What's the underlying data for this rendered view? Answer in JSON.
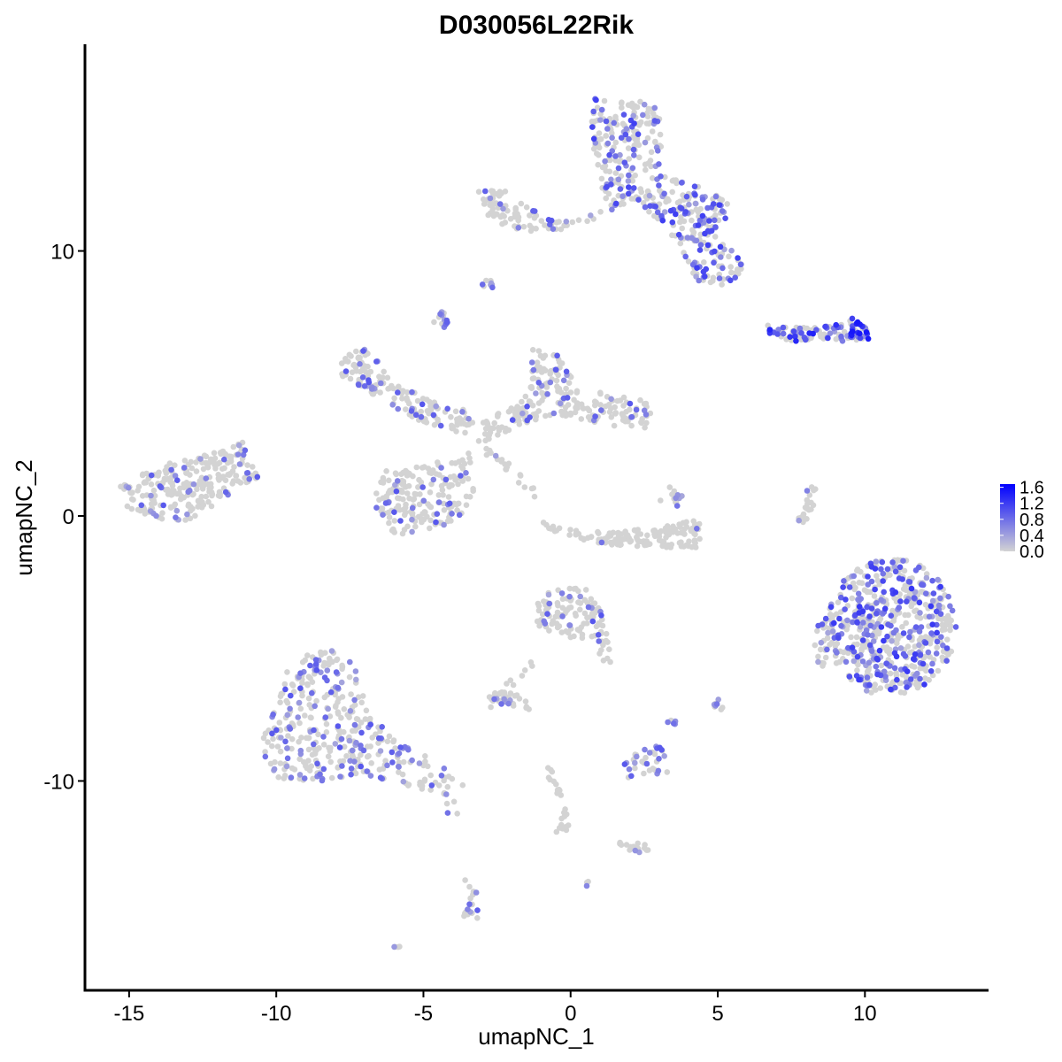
{
  "chart_data": {
    "type": "scatter",
    "title": "D030056L22Rik",
    "xlabel": "umapNC_1",
    "ylabel": "umapNC_2",
    "xlim": [
      -16.5,
      14.2
    ],
    "ylim": [
      -17.9,
      17.8
    ],
    "x_ticks": [
      -15,
      -10,
      -5,
      0,
      5,
      10
    ],
    "x_tick_labels": [
      "-15",
      "-10",
      "-5",
      "0",
      "5",
      "10"
    ],
    "y_ticks": [
      -10,
      0,
      10
    ],
    "y_tick_labels": [
      "-10",
      "0",
      "10"
    ],
    "grid": false,
    "legend": {
      "placement": "right",
      "type": "colorbar",
      "min": 0.0,
      "max": 1.68,
      "ticks": [
        0.0,
        0.4,
        0.8,
        1.2,
        1.6
      ],
      "tick_labels": [
        "0.0",
        "0.4",
        "0.8",
        "1.2",
        "1.6"
      ],
      "low_color": "#d3d3d3",
      "high_color": "#0000ff"
    },
    "point_color_low": "#d3d3d3",
    "point_color_high": "#0000ff",
    "clusters": [
      {
        "name": "top-right-upper",
        "shape": "poly",
        "poly": [
          [
            0.6,
            15.8
          ],
          [
            2.9,
            15.6
          ],
          [
            3.2,
            14.0
          ],
          [
            2.9,
            12.9
          ],
          [
            4.7,
            12.3
          ],
          [
            5.6,
            11.6
          ],
          [
            4.8,
            10.7
          ],
          [
            5.6,
            10.0
          ],
          [
            6.0,
            9.4
          ],
          [
            5.2,
            8.6
          ],
          [
            4.3,
            8.9
          ],
          [
            3.5,
            10.5
          ],
          [
            2.8,
            11.3
          ],
          [
            2.0,
            11.9
          ],
          [
            1.3,
            11.5
          ],
          [
            0.9,
            13.0
          ],
          [
            0.7,
            14.5
          ]
        ],
        "n": 420,
        "expr_frac": 0.38,
        "expr_max": 1.2
      },
      {
        "name": "top-mid-arm",
        "shape": "poly",
        "poly": [
          [
            -3.2,
            12.3
          ],
          [
            -2.2,
            12.3
          ],
          [
            -0.8,
            11.2
          ],
          [
            0.8,
            11.1
          ],
          [
            2.0,
            11.9
          ],
          [
            1.0,
            11.6
          ],
          [
            -0.5,
            10.7
          ],
          [
            -2.3,
            10.8
          ],
          [
            -3.1,
            11.4
          ]
        ],
        "n": 90,
        "expr_frac": 0.2,
        "expr_max": 1.0
      },
      {
        "name": "small-top-dot",
        "shape": "ellipse",
        "cx": -2.8,
        "cy": 8.7,
        "rx": 0.25,
        "ry": 0.2,
        "n": 8,
        "expr_frac": 0.2,
        "expr_max": 0.9
      },
      {
        "name": "small-blob-a",
        "shape": "ellipse",
        "cx": -4.4,
        "cy": 7.4,
        "rx": 0.25,
        "ry": 0.35,
        "n": 14,
        "expr_frac": 0.6,
        "expr_max": 1.0
      },
      {
        "name": "right-streak",
        "shape": "poly",
        "poly": [
          [
            6.6,
            7.2
          ],
          [
            8.5,
            7.1
          ],
          [
            9.6,
            7.5
          ],
          [
            10.2,
            7.0
          ],
          [
            10.1,
            6.6
          ],
          [
            9.0,
            6.6
          ],
          [
            7.5,
            6.6
          ],
          [
            6.8,
            6.8
          ]
        ],
        "n": 110,
        "expr_frac": 0.55,
        "expr_max": 1.5
      },
      {
        "name": "center-left-arm",
        "shape": "poly",
        "poly": [
          [
            -7.8,
            6.1
          ],
          [
            -6.9,
            6.3
          ],
          [
            -5.9,
            5.1
          ],
          [
            -4.6,
            4.3
          ],
          [
            -3.6,
            4.0
          ],
          [
            -3.2,
            3.4
          ],
          [
            -3.8,
            3.0
          ],
          [
            -5.0,
            3.5
          ],
          [
            -6.3,
            4.3
          ],
          [
            -7.8,
            5.2
          ]
        ],
        "n": 160,
        "expr_frac": 0.14,
        "expr_max": 1.0
      },
      {
        "name": "center-up-arm",
        "shape": "poly",
        "poly": [
          [
            -1.3,
            6.3
          ],
          [
            -0.4,
            6.1
          ],
          [
            0.3,
            4.8
          ],
          [
            1.8,
            4.5
          ],
          [
            2.7,
            4.4
          ],
          [
            2.8,
            3.3
          ],
          [
            1.5,
            3.4
          ],
          [
            -0.4,
            3.8
          ],
          [
            -1.8,
            3.4
          ],
          [
            -3.2,
            2.6
          ],
          [
            -3.0,
            3.5
          ],
          [
            -1.4,
            4.6
          ]
        ],
        "n": 230,
        "expr_frac": 0.14,
        "expr_max": 1.0
      },
      {
        "name": "center-lower",
        "shape": "poly",
        "poly": [
          [
            -6.2,
            1.8
          ],
          [
            -4.6,
            2.0
          ],
          [
            -3.4,
            2.5
          ],
          [
            -3.2,
            1.2
          ],
          [
            -3.6,
            0.0
          ],
          [
            -4.8,
            -0.6
          ],
          [
            -6.0,
            -0.7
          ],
          [
            -6.7,
            0.3
          ],
          [
            -6.6,
            1.2
          ]
        ],
        "n": 200,
        "expr_frac": 0.12,
        "expr_max": 1.0
      },
      {
        "name": "center-streak",
        "shape": "poly",
        "poly": [
          [
            -3.2,
            2.6
          ],
          [
            -1.1,
            0.6
          ],
          [
            -0.8,
            0.7
          ],
          [
            -2.9,
            2.8
          ]
        ],
        "n": 20,
        "expr_frac": 0.2,
        "expr_max": 0.8
      },
      {
        "name": "left-blob",
        "shape": "poly",
        "poly": [
          [
            -15.3,
            1.1
          ],
          [
            -14.1,
            1.9
          ],
          [
            -12.8,
            2.2
          ],
          [
            -11.8,
            2.5
          ],
          [
            -11.2,
            2.9
          ],
          [
            -10.6,
            1.4
          ],
          [
            -11.9,
            0.6
          ],
          [
            -12.6,
            -0.2
          ],
          [
            -13.7,
            -0.2
          ],
          [
            -15.2,
            0.3
          ]
        ],
        "n": 260,
        "expr_frac": 0.12,
        "expr_max": 1.0
      },
      {
        "name": "arc-cluster",
        "shape": "poly",
        "poly": [
          [
            -1.0,
            -0.2
          ],
          [
            0.2,
            -0.5
          ],
          [
            1.6,
            -0.6
          ],
          [
            3.2,
            -0.4
          ],
          [
            4.4,
            -0.1
          ],
          [
            4.4,
            -1.2
          ],
          [
            3.2,
            -1.2
          ],
          [
            1.5,
            -1.1
          ],
          [
            0.1,
            -0.9
          ],
          [
            -0.8,
            -0.5
          ]
        ],
        "n": 140,
        "expr_frac": 0.03,
        "expr_max": 0.8
      },
      {
        "name": "arc-top",
        "shape": "ellipse",
        "cx": 3.4,
        "cy": 0.7,
        "rx": 0.4,
        "ry": 0.4,
        "n": 14,
        "expr_frac": 0.3,
        "expr_max": 0.8
      },
      {
        "name": "right-thin",
        "shape": "poly",
        "poly": [
          [
            8.0,
            1.0
          ],
          [
            8.4,
            1.2
          ],
          [
            8.3,
            0.4
          ],
          [
            7.9,
            -0.6
          ],
          [
            7.5,
            -0.5
          ],
          [
            7.9,
            0.3
          ]
        ],
        "n": 22,
        "expr_frac": 0.2,
        "expr_max": 0.8
      },
      {
        "name": "right-big-blob",
        "shape": "ellipse",
        "cx": 10.9,
        "cy": -4.2,
        "rx": 2.2,
        "ry": 2.6,
        "n": 560,
        "expr_frac": 0.4,
        "expr_max": 1.25
      },
      {
        "name": "right-big-left",
        "shape": "ellipse",
        "cx": 8.7,
        "cy": -4.8,
        "rx": 0.45,
        "ry": 1.0,
        "n": 30,
        "expr_frac": 0.25,
        "expr_max": 1.0
      },
      {
        "name": "center-down",
        "shape": "poly",
        "poly": [
          [
            -1.1,
            -2.8
          ],
          [
            0.5,
            -2.7
          ],
          [
            1.1,
            -3.6
          ],
          [
            1.2,
            -4.8
          ],
          [
            0.0,
            -4.6
          ],
          [
            -1.2,
            -4.2
          ]
        ],
        "n": 110,
        "expr_frac": 0.15,
        "expr_max": 1.0
      },
      {
        "name": "center-down-tail",
        "shape": "poly",
        "poly": [
          [
            0.9,
            -4.4
          ],
          [
            1.3,
            -4.3
          ],
          [
            1.4,
            -5.6
          ],
          [
            1.0,
            -5.6
          ]
        ],
        "n": 12,
        "expr_frac": 0.15,
        "expr_max": 0.8
      },
      {
        "name": "small-left-mid",
        "shape": "poly",
        "poly": [
          [
            -2.8,
            -6.6
          ],
          [
            -1.6,
            -6.7
          ],
          [
            -1.4,
            -7.3
          ],
          [
            -2.8,
            -7.3
          ]
        ],
        "n": 35,
        "expr_frac": 0.1,
        "expr_max": 0.8
      },
      {
        "name": "diag-streak",
        "shape": "poly",
        "poly": [
          [
            -2.6,
            -6.7
          ],
          [
            -1.4,
            -5.4
          ],
          [
            -1.2,
            -5.6
          ],
          [
            -2.4,
            -6.9
          ]
        ],
        "n": 10,
        "expr_frac": 0.1,
        "expr_max": 0.8
      },
      {
        "name": "left-big",
        "shape": "poly",
        "poly": [
          [
            -9.5,
            -5.3
          ],
          [
            -8.0,
            -5.0
          ],
          [
            -7.2,
            -5.8
          ],
          [
            -7.0,
            -7.0
          ],
          [
            -6.0,
            -8.4
          ],
          [
            -4.6,
            -9.2
          ],
          [
            -3.6,
            -10.2
          ],
          [
            -4.4,
            -10.6
          ],
          [
            -5.6,
            -10.2
          ],
          [
            -7.0,
            -9.8
          ],
          [
            -8.4,
            -10.0
          ],
          [
            -10.0,
            -10.0
          ],
          [
            -10.6,
            -8.6
          ],
          [
            -10.0,
            -7.0
          ]
        ],
        "n": 380,
        "expr_frac": 0.28,
        "expr_max": 1.0
      },
      {
        "name": "small-right-mid",
        "shape": "poly",
        "poly": [
          [
            1.8,
            -9.0
          ],
          [
            3.2,
            -8.6
          ],
          [
            3.3,
            -9.8
          ],
          [
            1.8,
            -9.9
          ]
        ],
        "n": 35,
        "expr_frac": 0.5,
        "expr_max": 1.0
      },
      {
        "name": "small-right-mid2",
        "shape": "ellipse",
        "cx": 5.0,
        "cy": -7.2,
        "rx": 0.2,
        "ry": 0.3,
        "n": 8,
        "expr_frac": 0.6,
        "expr_max": 0.9
      },
      {
        "name": "small-c",
        "shape": "ellipse",
        "cx": 3.4,
        "cy": -7.8,
        "rx": 0.2,
        "ry": 0.2,
        "n": 5,
        "expr_frac": 0.6,
        "expr_max": 0.9
      },
      {
        "name": "bottom-chain",
        "shape": "poly",
        "poly": [
          [
            -0.7,
            -9.4
          ],
          [
            -0.3,
            -10.5
          ],
          [
            0.0,
            -11.8
          ],
          [
            -0.6,
            -12.2
          ],
          [
            -0.2,
            -11.0
          ],
          [
            -0.9,
            -9.6
          ]
        ],
        "n": 28,
        "expr_frac": 0.03,
        "expr_max": 0.8
      },
      {
        "name": "bottom-tail",
        "shape": "poly",
        "poly": [
          [
            1.5,
            -12.2
          ],
          [
            2.6,
            -12.4
          ],
          [
            2.7,
            -12.8
          ],
          [
            1.6,
            -12.5
          ]
        ],
        "n": 18,
        "expr_frac": 0.1,
        "expr_max": 0.8
      },
      {
        "name": "bottom-small",
        "shape": "poly",
        "poly": [
          [
            -3.6,
            -13.7
          ],
          [
            -3.2,
            -14.2
          ],
          [
            -3.1,
            -15.2
          ],
          [
            -3.7,
            -15.3
          ],
          [
            -3.4,
            -14.2
          ]
        ],
        "n": 18,
        "expr_frac": 0.3,
        "expr_max": 1.0
      },
      {
        "name": "bottom-dot-a",
        "shape": "ellipse",
        "cx": 0.6,
        "cy": -13.9,
        "rx": 0.1,
        "ry": 0.1,
        "n": 3,
        "expr_frac": 0.3,
        "expr_max": 0.8
      },
      {
        "name": "bottom-dot-b",
        "shape": "ellipse",
        "cx": -5.9,
        "cy": -16.2,
        "rx": 0.12,
        "ry": 0.1,
        "n": 4,
        "expr_frac": 0.5,
        "expr_max": 0.9
      },
      {
        "name": "scatter-singles",
        "shape": "poly",
        "poly": [
          [
            -4.2,
            -10.6
          ],
          [
            -3.8,
            -10.6
          ],
          [
            -3.8,
            -11.4
          ],
          [
            -4.2,
            -11.4
          ]
        ],
        "n": 4,
        "expr_frac": 0.3,
        "expr_max": 0.8
      }
    ]
  }
}
